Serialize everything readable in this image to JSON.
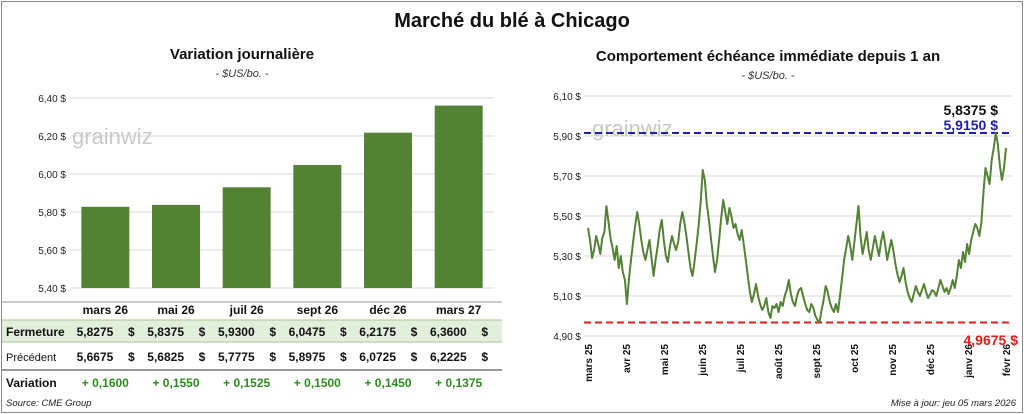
{
  "title": "Marché du blé à Chicago",
  "source": "Source: CME Group",
  "updated": "Mise à jour: jeu 05 mars 2026",
  "watermark": "grainwiz",
  "colors": {
    "bar": "#548235",
    "line": "#548235",
    "high": "#1f1fa8",
    "low": "#e21b1b",
    "row_fill": "#e2efda",
    "positive": "#2e8b1f"
  },
  "left": {
    "subtitle": "Variation journalière",
    "unit": "- $US/bo. -",
    "table": {
      "rows": [
        {
          "label": "Fermeture",
          "values": [
            "5,8275",
            "5,8375",
            "5,9300",
            "6,0475",
            "6,2175",
            "6,3600"
          ],
          "currency": "$"
        },
        {
          "label": "Précédent",
          "values": [
            "5,6675",
            "5,6825",
            "5,7775",
            "5,8975",
            "6,0725",
            "6,2225"
          ],
          "currency": "$"
        },
        {
          "label": "Variation",
          "values": [
            "+ 0,1600",
            "+ 0,1550",
            "+ 0,1525",
            "+ 0,1500",
            "+ 0,1450",
            "+ 0,1375"
          ]
        }
      ]
    }
  },
  "right": {
    "subtitle": "Comportement échéance immédiate depuis 1 an",
    "unit": "- $US/bo. -",
    "annotations": {
      "last": "5,8375 $",
      "high": "5,9150 $",
      "low": "4,9675 $"
    }
  },
  "chart_data": [
    {
      "type": "bar",
      "categories": [
        "mars 26",
        "mai 26",
        "juil 26",
        "sept 26",
        "déc 26",
        "mars 27"
      ],
      "values": [
        5.8275,
        5.8375,
        5.93,
        6.0475,
        6.2175,
        6.36
      ],
      "ylim": [
        5.4,
        6.4
      ],
      "yticks": [
        5.4,
        5.6,
        5.8,
        6.0,
        6.2,
        6.4
      ],
      "ytick_labels": [
        "5,40 $",
        "5,60 $",
        "5,80 $",
        "6,00 $",
        "6,20 $",
        "6,40 $"
      ]
    },
    {
      "type": "line",
      "x_labels": [
        "mars 25",
        "avr 25",
        "mai 25",
        "juin 25",
        "juil 25",
        "août 25",
        "sept 25",
        "oct 25",
        "nov 25",
        "déc 25",
        "janv 26",
        "févr 26"
      ],
      "ylim": [
        4.9,
        6.1
      ],
      "yticks": [
        4.9,
        5.1,
        5.3,
        5.5,
        5.7,
        5.9,
        6.1
      ],
      "ytick_labels": [
        "4,90 $",
        "5,10 $",
        "5,30 $",
        "5,50 $",
        "5,70 $",
        "5,90 $",
        "6,10 $"
      ],
      "high": 5.915,
      "low": 4.9675,
      "last": 5.8375,
      "values": [
        5.44,
        5.38,
        5.29,
        5.33,
        5.4,
        5.36,
        5.31,
        5.39,
        5.42,
        5.55,
        5.47,
        5.39,
        5.34,
        5.28,
        5.35,
        5.24,
        5.3,
        5.22,
        5.18,
        5.06,
        5.19,
        5.28,
        5.37,
        5.45,
        5.52,
        5.46,
        5.38,
        5.32,
        5.28,
        5.33,
        5.38,
        5.29,
        5.2,
        5.28,
        5.35,
        5.43,
        5.48,
        5.38,
        5.3,
        5.27,
        5.35,
        5.4,
        5.36,
        5.33,
        5.37,
        5.46,
        5.52,
        5.47,
        5.4,
        5.32,
        5.24,
        5.2,
        5.27,
        5.36,
        5.45,
        5.57,
        5.73,
        5.68,
        5.56,
        5.48,
        5.39,
        5.3,
        5.22,
        5.28,
        5.38,
        5.49,
        5.58,
        5.52,
        5.46,
        5.54,
        5.5,
        5.44,
        5.46,
        5.41,
        5.38,
        5.43,
        5.36,
        5.28,
        5.2,
        5.12,
        5.07,
        5.11,
        5.16,
        5.1,
        5.06,
        5.03,
        5.05,
        5.09,
        5.02,
        4.99,
        5.05,
        5.04,
        5.06,
        5.02,
        5.07,
        5.05,
        5.1,
        5.13,
        5.18,
        5.11,
        5.07,
        5.05,
        5.1,
        5.13,
        5.14,
        5.1,
        5.06,
        5.03,
        5.02,
        5.06,
        5.04,
        5.0,
        4.98,
        4.97,
        5.03,
        5.08,
        5.15,
        5.12,
        5.07,
        5.04,
        5.02,
        5.06,
        5.02,
        5.1,
        5.19,
        5.28,
        5.34,
        5.4,
        5.35,
        5.28,
        5.37,
        5.46,
        5.55,
        5.4,
        5.31,
        5.36,
        5.42,
        5.33,
        5.28,
        5.34,
        5.4,
        5.35,
        5.3,
        5.37,
        5.42,
        5.36,
        5.28,
        5.33,
        5.38,
        5.33,
        5.26,
        5.21,
        5.17,
        5.2,
        5.24,
        5.17,
        5.12,
        5.09,
        5.07,
        5.11,
        5.15,
        5.12,
        5.1,
        5.13,
        5.16,
        5.12,
        5.09,
        5.11,
        5.13,
        5.12,
        5.1,
        5.14,
        5.18,
        5.15,
        5.12,
        5.14,
        5.11,
        5.14,
        5.18,
        5.14,
        5.2,
        5.28,
        5.24,
        5.32,
        5.27,
        5.36,
        5.31,
        5.38,
        5.42,
        5.46,
        5.44,
        5.4,
        5.47,
        5.62,
        5.74,
        5.7,
        5.66,
        5.78,
        5.84,
        5.915,
        5.86,
        5.75,
        5.68,
        5.74,
        5.84
      ]
    }
  ]
}
